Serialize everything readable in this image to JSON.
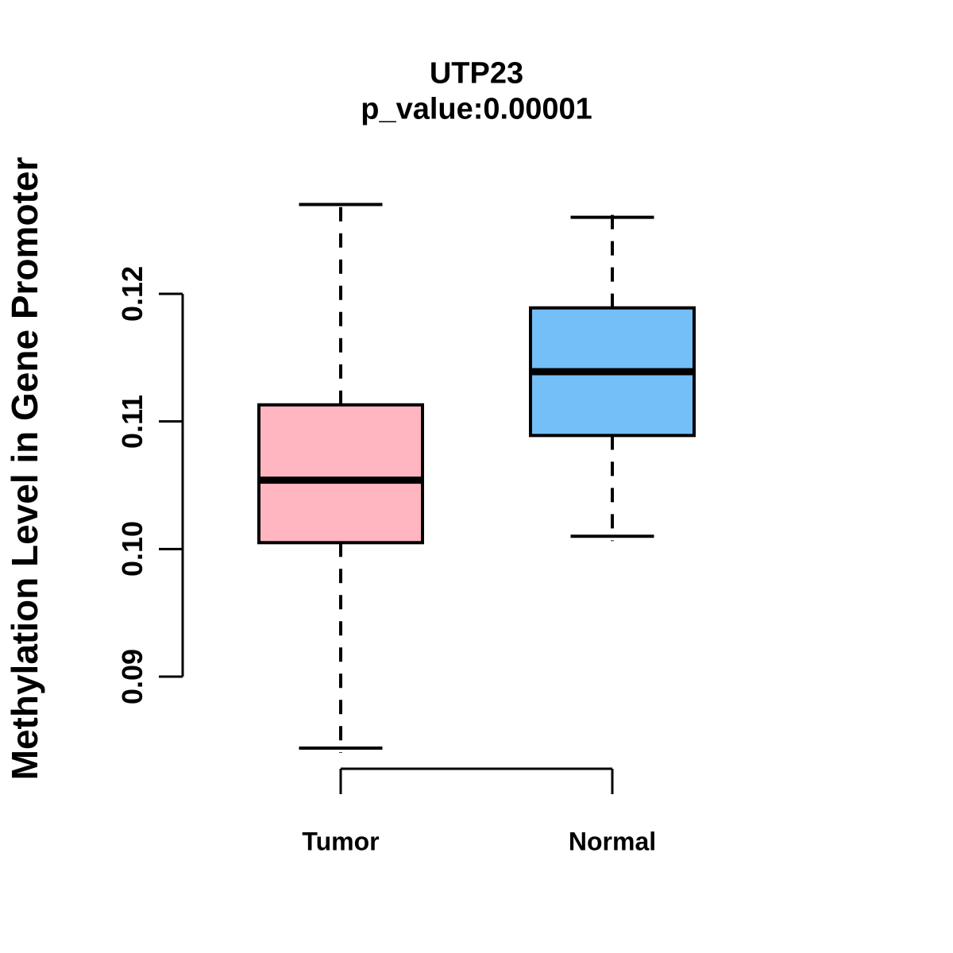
{
  "chart_data": {
    "type": "boxplot",
    "title": "UTP23",
    "subtitle": "p_value:0.00001",
    "ylabel": "Methylation Level in Gene Promoter",
    "xlabel": "",
    "categories": [
      "Tumor",
      "Normal"
    ],
    "yticks": [
      "0.09",
      "0.10",
      "0.11",
      "0.12"
    ],
    "ylim": [
      0.084,
      0.128
    ],
    "grid": false,
    "legend": "none",
    "series": [
      {
        "name": "Tumor",
        "color": "#FFB6C1",
        "whisker_low": 0.0844,
        "q1": 0.1005,
        "median": 0.1054,
        "q3": 0.1113,
        "whisker_high": 0.127
      },
      {
        "name": "Normal",
        "color": "#74BFF7",
        "whisker_low": 0.101,
        "q1": 0.1089,
        "median": 0.1139,
        "q3": 0.1189,
        "whisker_high": 0.126
      }
    ],
    "stroke_color": "#000000",
    "background_color": "#FFFFFF"
  }
}
